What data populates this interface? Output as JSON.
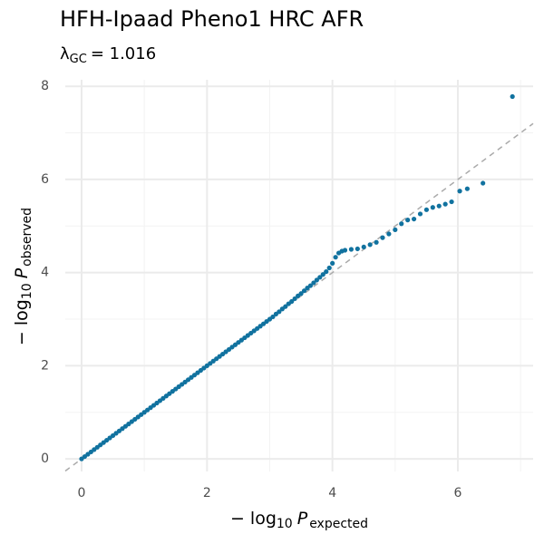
{
  "chart_data": {
    "type": "scatter",
    "title": "HFH-Ipaad Pheno1 HRC AFR",
    "subtitle": {
      "symbol": "λ",
      "subscript": "GC",
      "text": "= 1.016"
    },
    "x_label": {
      "prefix": "− log",
      "subscript": "10",
      "variable": "P",
      "variable_subscript": "expected"
    },
    "y_label": {
      "prefix": "− log",
      "subscript": "10",
      "variable": "P",
      "variable_subscript": "observed"
    },
    "xlim": [
      -0.26,
      7.2
    ],
    "ylim": [
      -0.27,
      8.14
    ],
    "xticks": [
      0,
      2,
      4,
      6
    ],
    "yticks": [
      0,
      2,
      4,
      6,
      8
    ],
    "minor_xticks": [
      1,
      3,
      5,
      7
    ],
    "minor_yticks": [
      1,
      3,
      5,
      7
    ],
    "grid": true,
    "reference_line": true,
    "reference_color": "#aaaaaa",
    "series": [
      {
        "color": "#11729f",
        "x": [
          0,
          0.05,
          0.1,
          0.15,
          0.2,
          0.25,
          0.3,
          0.35,
          0.4,
          0.45,
          0.5,
          0.55,
          0.6,
          0.65,
          0.7,
          0.75,
          0.8,
          0.85,
          0.9,
          0.95,
          1,
          1.05,
          1.1,
          1.15,
          1.2,
          1.25,
          1.3,
          1.35,
          1.4,
          1.45,
          1.5,
          1.55,
          1.6,
          1.65,
          1.7,
          1.75,
          1.8,
          1.85,
          1.9,
          1.95,
          2,
          2.05,
          2.1,
          2.15,
          2.2,
          2.25,
          2.3,
          2.35,
          2.4,
          2.45,
          2.5,
          2.55,
          2.6,
          2.65,
          2.7,
          2.75,
          2.8,
          2.85,
          2.9,
          2.95,
          3,
          3.05,
          3.1,
          3.15,
          3.2,
          3.25,
          3.3,
          3.35,
          3.4,
          3.45,
          3.5,
          3.55,
          3.6,
          3.65,
          3.7,
          3.75,
          3.8,
          3.85,
          3.9,
          3.95,
          4,
          4.05,
          4.1,
          4.15,
          4.2,
          4.3,
          4.4,
          4.5,
          4.6,
          4.7,
          4.8,
          4.9,
          5,
          5.1,
          5.2,
          5.3,
          5.4,
          5.5,
          5.6,
          5.7,
          5.8,
          5.9,
          6.03,
          6.15,
          6.4,
          6.87
        ],
        "values": [
          0,
          0.05,
          0.1,
          0.15,
          0.2,
          0.25,
          0.3,
          0.35,
          0.4,
          0.45,
          0.5,
          0.55,
          0.6,
          0.65,
          0.7,
          0.75,
          0.8,
          0.85,
          0.9,
          0.95,
          1,
          1.05,
          1.1,
          1.15,
          1.2,
          1.25,
          1.3,
          1.35,
          1.4,
          1.45,
          1.5,
          1.55,
          1.6,
          1.65,
          1.7,
          1.75,
          1.8,
          1.85,
          1.9,
          1.95,
          2,
          2.05,
          2.1,
          2.15,
          2.2,
          2.25,
          2.3,
          2.35,
          2.4,
          2.45,
          2.5,
          2.55,
          2.6,
          2.65,
          2.7,
          2.75,
          2.8,
          2.85,
          2.9,
          2.95,
          3,
          3.05,
          3.11,
          3.16,
          3.22,
          3.27,
          3.33,
          3.38,
          3.44,
          3.5,
          3.55,
          3.61,
          3.67,
          3.72,
          3.78,
          3.84,
          3.9,
          3.96,
          4.02,
          4.1,
          4.2,
          4.33,
          4.42,
          4.46,
          4.48,
          4.5,
          4.51,
          4.55,
          4.6,
          4.65,
          4.75,
          4.83,
          4.92,
          5.05,
          5.13,
          5.15,
          5.26,
          5.35,
          5.4,
          5.43,
          5.47,
          5.52,
          5.75,
          5.8,
          5.92,
          7.78
        ]
      }
    ]
  }
}
